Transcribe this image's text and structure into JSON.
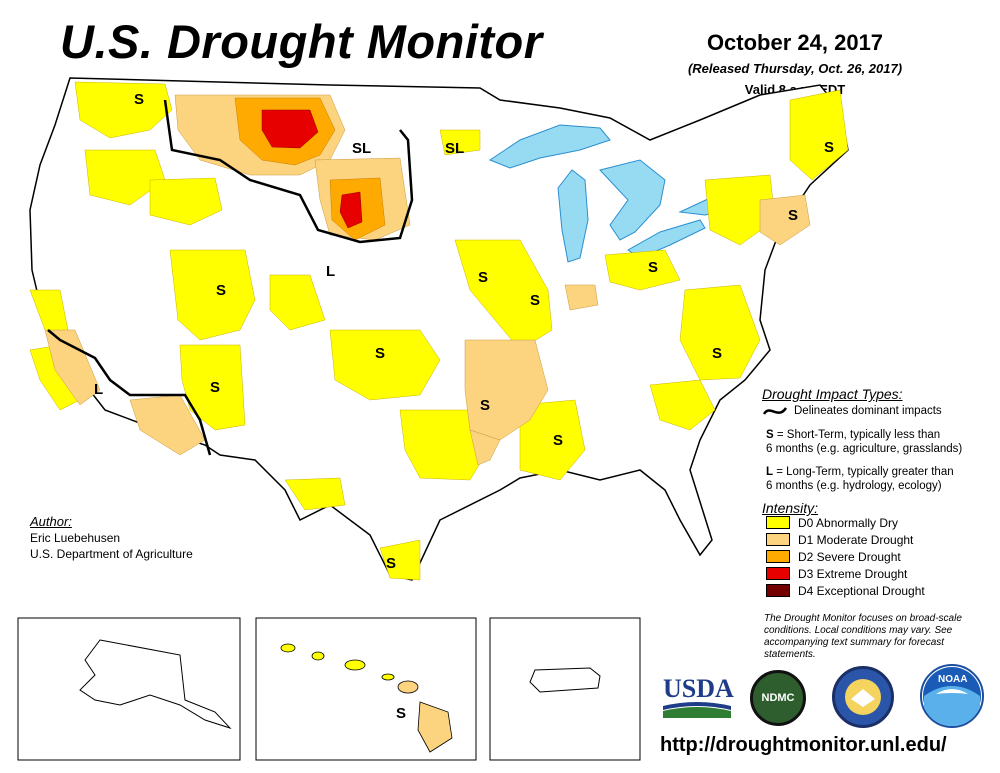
{
  "header": {
    "title": "U.S. Drought Monitor",
    "date": "October 24, 2017",
    "released": "(Released Thursday, Oct. 26, 2017)",
    "valid": "Valid 8 a.m. EDT"
  },
  "map_labels": {
    "s": "S",
    "l": "L",
    "sl": "SL"
  },
  "impact_types": {
    "title": "Drought Impact Types:",
    "delineates": "Delineates dominant impacts",
    "short_key": "S",
    "short_text": " = Short-Term, typically less than",
    "short_text2": "6 months (e.g. agriculture, grasslands)",
    "long_key": "L",
    "long_text": " = Long-Term, typically greater than",
    "long_text2": "6 months (e.g. hydrology, ecology)"
  },
  "intensity": {
    "title": "Intensity:",
    "levels": [
      {
        "label": "D0 Abnormally Dry",
        "color": "#FFFF00"
      },
      {
        "label": "D1 Moderate Drought",
        "color": "#FCD37F"
      },
      {
        "label": "D2 Severe Drought",
        "color": "#FFAA00"
      },
      {
        "label": "D3 Extreme Drought",
        "color": "#E60000"
      },
      {
        "label": "D4 Exceptional Drought",
        "color": "#730000"
      }
    ]
  },
  "author": {
    "heading": "Author:",
    "name": "Eric Luebehusen",
    "org": "U.S. Department of Agriculture"
  },
  "footnote": "The Drought Monitor focuses on broad-scale conditions. Local conditions may vary. See accompanying text summary for forecast statements.",
  "logos": {
    "usda": "USDA",
    "ndmc": "NDMC",
    "noaa": "NOAA"
  },
  "url": "http://droughtmonitor.unl.edu/",
  "colors": {
    "water": "#97DBF2",
    "d0": "#FFFF00",
    "d1": "#FCD37F",
    "d2": "#FFAA00",
    "d3": "#E60000",
    "usda_blue": "#1f3c88",
    "usda_green": "#2e7d32"
  }
}
